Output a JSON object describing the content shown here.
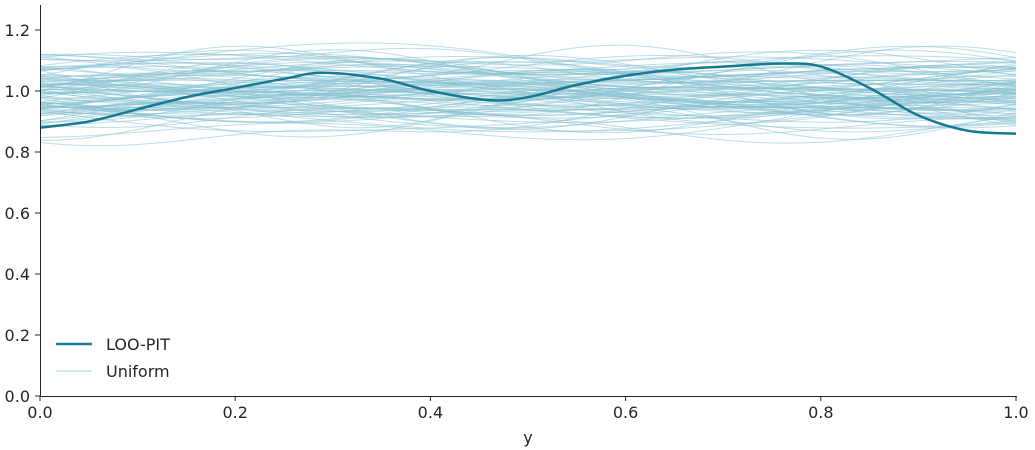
{
  "chart_data": {
    "type": "line",
    "title": "",
    "xlabel": "y",
    "ylabel": "",
    "xlim": [
      0.0,
      1.0
    ],
    "ylim": [
      0.0,
      1.28
    ],
    "x_ticks": [
      "0.0",
      "0.2",
      "0.4",
      "0.6",
      "0.8",
      "1.0"
    ],
    "y_ticks": [
      "0.0",
      "0.2",
      "0.4",
      "0.6",
      "0.8",
      "1.0",
      "1.2"
    ],
    "grid": false,
    "legend_position": "lower left",
    "legend": [
      {
        "label": "LOO-PIT",
        "color": "#167a93",
        "width": 2.5
      },
      {
        "label": "Uniform",
        "color": "#87c1d2",
        "width": 1
      }
    ],
    "series": [
      {
        "name": "LOO-PIT",
        "color": "#167a93",
        "x": [
          0.0,
          0.05,
          0.1,
          0.15,
          0.2,
          0.25,
          0.29,
          0.35,
          0.4,
          0.46,
          0.5,
          0.55,
          0.6,
          0.65,
          0.7,
          0.76,
          0.8,
          0.85,
          0.9,
          0.95,
          1.0
        ],
        "values": [
          0.88,
          0.9,
          0.94,
          0.98,
          1.01,
          1.04,
          1.06,
          1.04,
          1.0,
          0.97,
          0.98,
          1.02,
          1.05,
          1.07,
          1.08,
          1.09,
          1.08,
          1.01,
          0.92,
          0.87,
          0.86
        ]
      },
      {
        "name": "Uniform",
        "color": "#87c1d2",
        "note": "~100 smoothed KDE samples of uniform distribution, values range approx 0.81–1.26, centered near 1.0",
        "range": [
          0.81,
          1.26
        ]
      }
    ]
  }
}
